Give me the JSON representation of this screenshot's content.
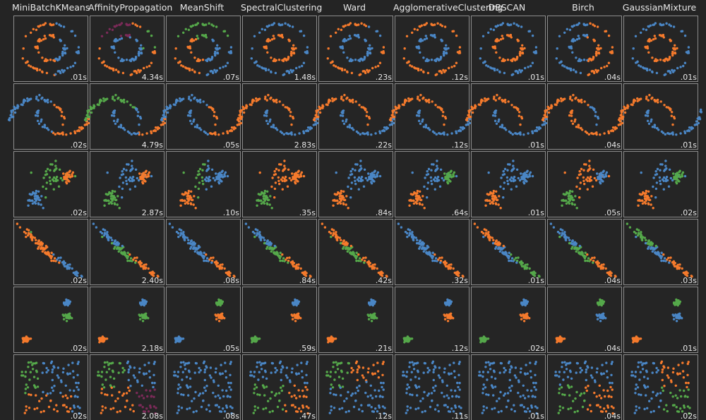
{
  "chart_data": {
    "type": "scatter",
    "title": "",
    "grid": false,
    "algorithms": [
      "MiniBatchKMeans",
      "AffinityPropagation",
      "MeanShift",
      "SpectralClustering",
      "Ward",
      "AgglomerativeClustering",
      "DBSCAN",
      "Birch",
      "GaussianMixture"
    ],
    "datasets": [
      "noisy_circles",
      "noisy_moons",
      "varied",
      "aniso",
      "blobs",
      "no_structure"
    ],
    "palette": {
      "blue": "#4a86c5",
      "orange": "#f57a2c",
      "green": "#55a84a",
      "purple": "#7b2a58",
      "pink": "#d247a0"
    },
    "timings": [
      [
        ".01s",
        "4.34s",
        ".07s",
        "1.48s",
        ".23s",
        ".12s",
        ".01s",
        ".04s",
        ".01s"
      ],
      [
        ".02s",
        "4.79s",
        ".05s",
        "2.83s",
        ".22s",
        ".12s",
        ".01s",
        ".04s",
        ".01s"
      ],
      [
        ".02s",
        "2.87s",
        ".10s",
        ".35s",
        ".84s",
        ".64s",
        ".01s",
        ".05s",
        ".02s"
      ],
      [
        ".02s",
        "2.40s",
        ".08s",
        ".84s",
        ".42s",
        ".32s",
        ".01s",
        ".04s",
        ".03s"
      ],
      [
        ".02s",
        "2.18s",
        ".05s",
        ".59s",
        ".21s",
        ".12s",
        ".02s",
        ".04s",
        ".01s"
      ],
      [
        ".02s",
        "2.08s",
        ".08s",
        ".47s",
        ".12s",
        ".11s",
        ".01s",
        ".04s",
        ".02s"
      ]
    ],
    "xlim": [
      -2.5,
      2.5
    ],
    "ylim": [
      -2.5,
      2.5
    ]
  }
}
